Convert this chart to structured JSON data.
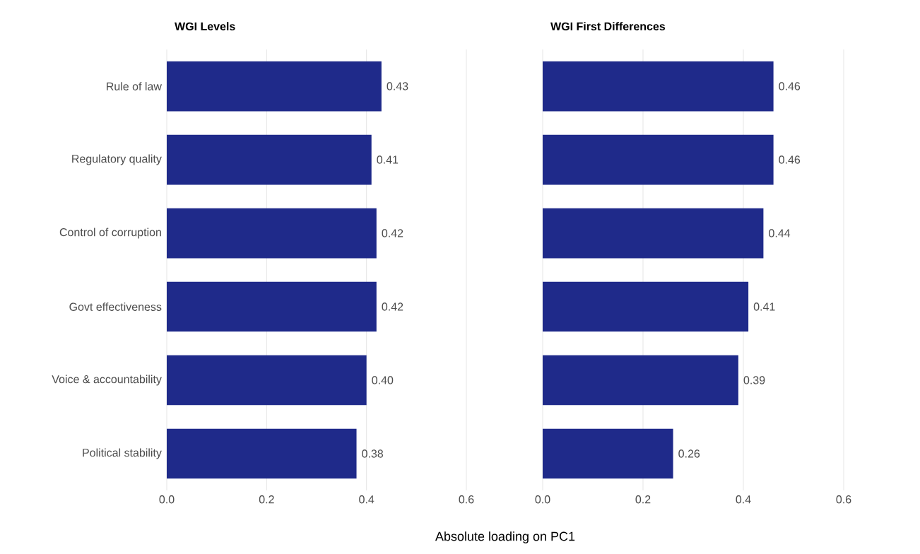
{
  "chart_data": [
    {
      "type": "bar",
      "orientation": "horizontal",
      "title": "WGI Levels",
      "categories": [
        "Rule of law",
        "Regulatory quality",
        "Control of corruption",
        "Govt effectiveness",
        "Voice & accountability",
        "Political stability"
      ],
      "values": [
        0.43,
        0.41,
        0.42,
        0.42,
        0.4,
        0.38
      ],
      "value_labels": [
        "0.43",
        "0.41",
        "0.42",
        "0.42",
        "0.40",
        "0.38"
      ],
      "color": "#1f2a8a",
      "xlim": [
        0,
        0.6
      ],
      "xticks": [
        {
          "value": 0,
          "label": "0.0"
        },
        {
          "value": 0.2,
          "label": "0.2"
        },
        {
          "value": 0.4,
          "label": "0.4"
        },
        {
          "value": 0.6,
          "label": "0.6"
        }
      ],
      "grid": "x"
    },
    {
      "type": "bar",
      "orientation": "horizontal",
      "title": "WGI First Differences",
      "xlabel": "Absolute loading on PC1",
      "categories": [
        null,
        null,
        null,
        null,
        null,
        null
      ],
      "values": [
        0.46,
        0.46,
        0.44,
        0.41,
        0.39,
        0.26
      ],
      "value_labels": [
        "0.46",
        "0.46",
        "0.44",
        "0.41",
        "0.39",
        "0.26"
      ],
      "color": "#1f2a8a",
      "xlim": [
        0,
        0.6
      ],
      "xticks": [
        {
          "value": 0,
          "label": "0.0"
        },
        {
          "value": 0.2,
          "label": "0.2"
        },
        {
          "value": 0.4,
          "label": "0.4"
        },
        {
          "value": 0.6,
          "label": "0.6"
        }
      ],
      "grid": "x",
      "tick_labels": "x"
    }
  ]
}
